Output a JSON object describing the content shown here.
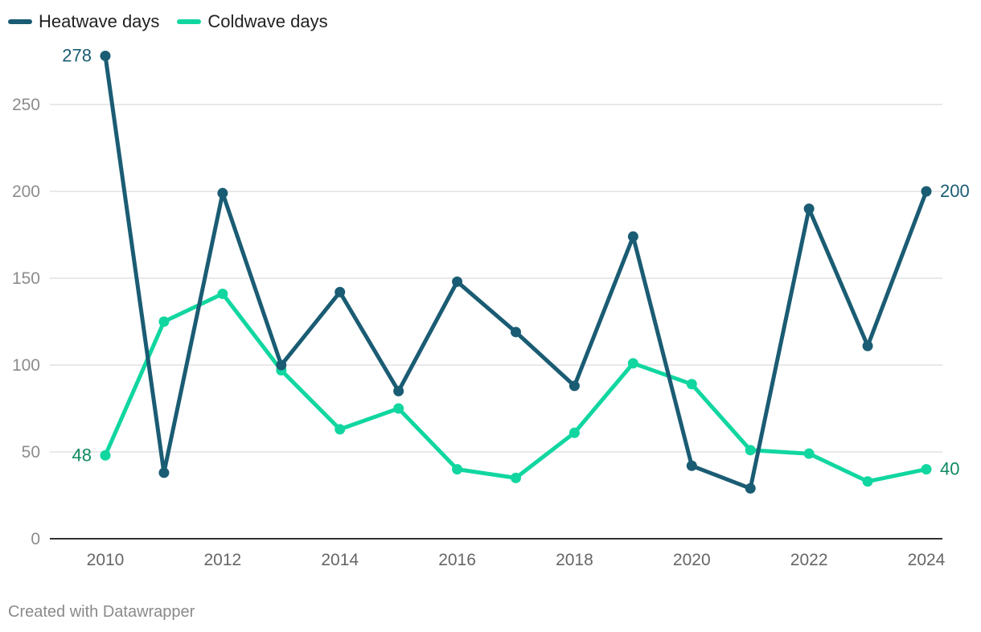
{
  "chart_data": {
    "type": "line",
    "title": "",
    "xlabel": "",
    "ylabel": "",
    "x": [
      2010,
      2011,
      2012,
      2013,
      2014,
      2015,
      2016,
      2017,
      2018,
      2019,
      2020,
      2021,
      2022,
      2023,
      2024
    ],
    "x_ticks": [
      "2010",
      "2012",
      "2014",
      "2016",
      "2018",
      "2020",
      "2022",
      "2024"
    ],
    "y_ticks": [
      "0",
      "50",
      "100",
      "150",
      "200",
      "250"
    ],
    "ylim": [
      0,
      280
    ],
    "grid": true,
    "legend_position": "top-left",
    "series": [
      {
        "name": "Heatwave days",
        "color": "#1a5c73",
        "values": [
          278,
          38,
          199,
          100,
          142,
          85,
          148,
          119,
          88,
          174,
          42,
          29,
          190,
          111,
          200
        ],
        "start_label": "278",
        "end_label": "200"
      },
      {
        "name": "Coldwave days",
        "color": "#11d6a0",
        "label_color": "#0f8a63",
        "values": [
          48,
          125,
          141,
          97,
          63,
          75,
          40,
          35,
          61,
          101,
          89,
          51,
          49,
          33,
          40
        ],
        "start_label": "48",
        "end_label": "40"
      }
    ]
  },
  "footer": {
    "credit": "Created with Datawrapper"
  }
}
